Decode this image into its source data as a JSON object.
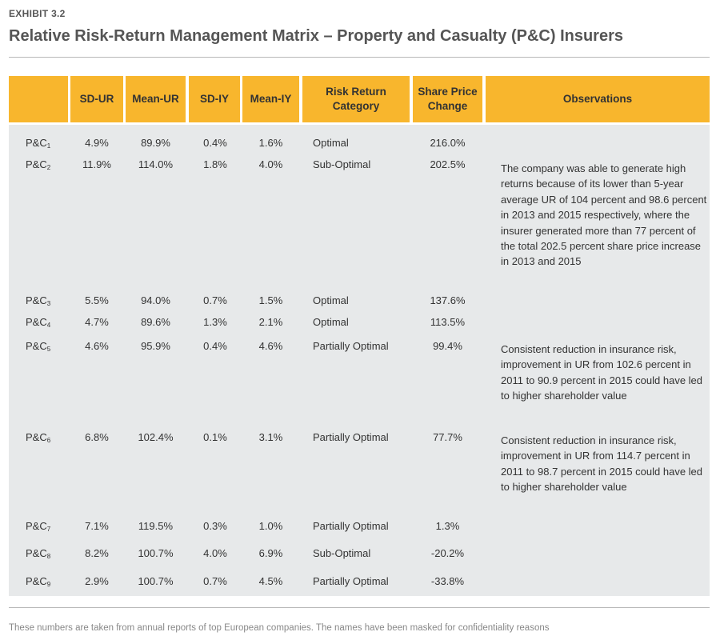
{
  "exhibit_label": "EXHIBIT 3.2",
  "title": "Relative Risk-Return Management Matrix – Property and Casualty (P&C) Insurers",
  "columns": {
    "name": "",
    "sd_ur": "SD-UR",
    "mean_ur": "Mean-UR",
    "sd_iy": "SD-IY",
    "mean_iy": "Mean-IY",
    "category_line1": "Risk Return",
    "category_line2": "Category",
    "spc_line1": "Share Price",
    "spc_line2": "Change",
    "observations": "Observations"
  },
  "rows": [
    {
      "name": "P&C",
      "sub": "1",
      "sd_ur": "4.9%",
      "mean_ur": "89.9%",
      "sd_iy": "0.4%",
      "mean_iy": "1.6%",
      "category": "Optimal",
      "spc": "216.0%"
    },
    {
      "name": "P&C",
      "sub": "2",
      "sd_ur": "11.9%",
      "mean_ur": "114.0%",
      "sd_iy": "1.8%",
      "mean_iy": "4.0%",
      "category": "Sub-Optimal",
      "spc": "202.5%"
    },
    {
      "name": "P&C",
      "sub": "3",
      "sd_ur": "5.5%",
      "mean_ur": "94.0%",
      "sd_iy": "0.7%",
      "mean_iy": "1.5%",
      "category": "Optimal",
      "spc": "137.6%"
    },
    {
      "name": "P&C",
      "sub": "4",
      "sd_ur": "4.7%",
      "mean_ur": "89.6%",
      "sd_iy": "1.3%",
      "mean_iy": "2.1%",
      "category": "Optimal",
      "spc": "113.5%"
    },
    {
      "name": "P&C",
      "sub": "5",
      "sd_ur": "4.6%",
      "mean_ur": "95.9%",
      "sd_iy": "0.4%",
      "mean_iy": "4.6%",
      "category": "Partially Optimal",
      "spc": "99.4%"
    },
    {
      "name": "P&C",
      "sub": "6",
      "sd_ur": "6.8%",
      "mean_ur": "102.4%",
      "sd_iy": "0.1%",
      "mean_iy": "3.1%",
      "category": "Partially Optimal",
      "spc": "77.7%"
    },
    {
      "name": "P&C",
      "sub": "7",
      "sd_ur": "7.1%",
      "mean_ur": "119.5%",
      "sd_iy": "0.3%",
      "mean_iy": "1.0%",
      "category": "Partially Optimal",
      "spc": "1.3%"
    },
    {
      "name": "P&C",
      "sub": "8",
      "sd_ur": "8.2%",
      "mean_ur": "100.7%",
      "sd_iy": "4.0%",
      "mean_iy": "6.9%",
      "category": "Sub-Optimal",
      "spc": "-20.2%"
    },
    {
      "name": "P&C",
      "sub": "9",
      "sd_ur": "2.9%",
      "mean_ur": "100.7%",
      "sd_iy": "0.7%",
      "mean_iy": "4.5%",
      "category": "Partially Optimal",
      "spc": "-33.8%"
    }
  ],
  "observations": [
    "The company was able to generate high returns because of its lower than 5-year average UR of 104 percent and 98.6 percent in 2013 and 2015 respectively, where the insurer generated more than 77 percent of the total 202.5 percent share price increase in 2013 and 2015",
    "Consistent reduction in insurance risk, improvement in UR from 102.6 percent in 2011 to 90.9 percent in 2015 could have led to higher shareholder value",
    "Consistent reduction in insurance risk, improvement in UR from 114.7 percent in 2011 to 98.7 percent in 2015 could have led to higher shareholder value"
  ],
  "footnote": "These numbers are taken from annual reports of top European companies. The names have been masked for confidentiality reasons",
  "colors": {
    "header": "#f8b62d",
    "body": "#e7e9ea"
  }
}
